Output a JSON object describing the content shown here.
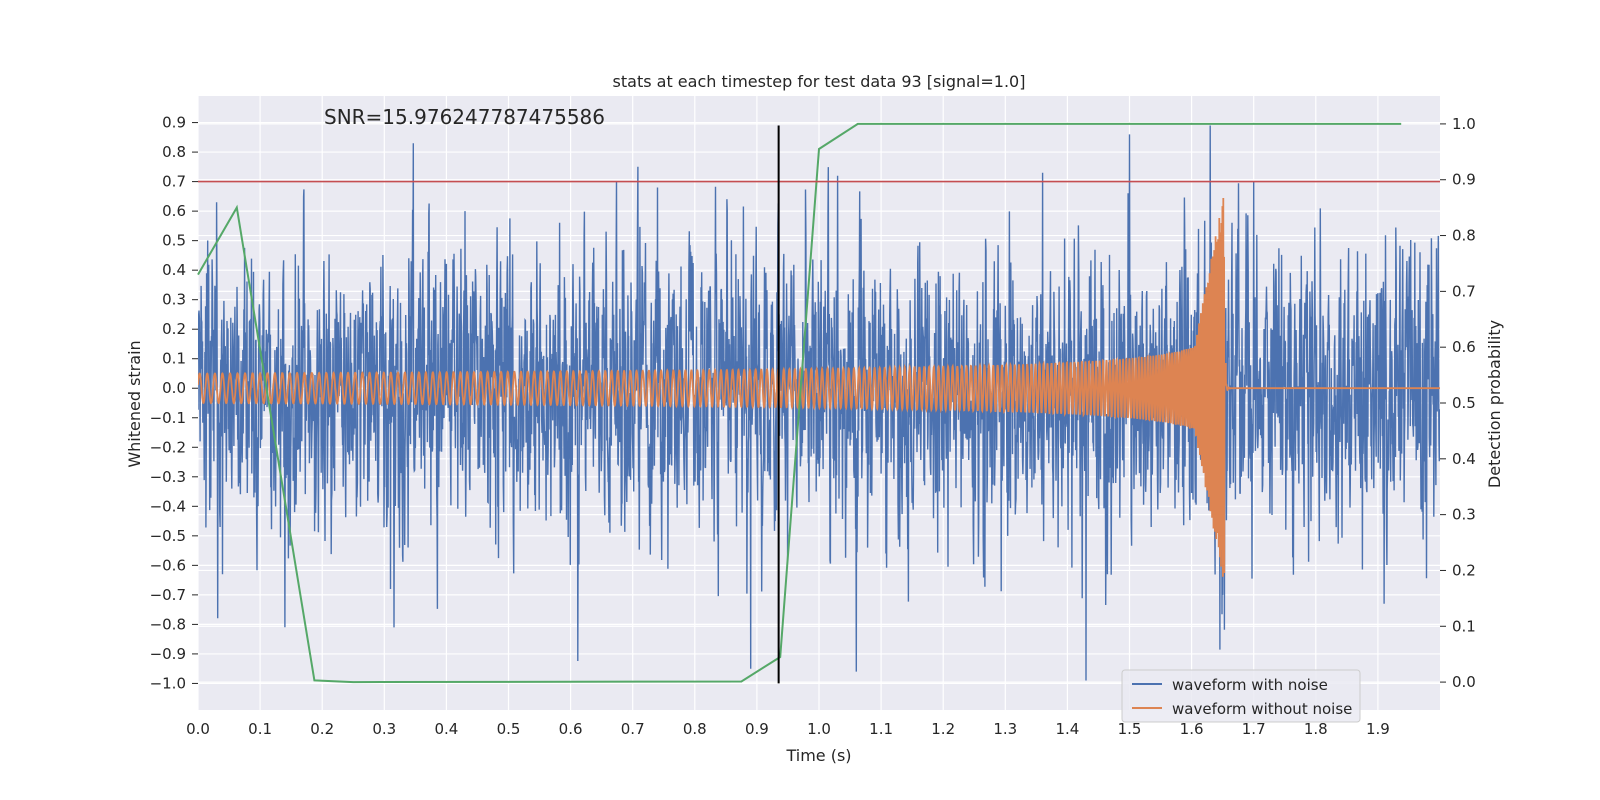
{
  "chart_data": {
    "type": "line",
    "title": "stats at each timestep for test data 93 [signal=1.0]",
    "annotation": "SNR=15.976247787475586",
    "xlabel": "Time (s)",
    "ylabel": "Whitened strain",
    "y2label": "Detection probability",
    "xlim": [
      0.0,
      2.0
    ],
    "ylim": [
      -1.09,
      0.99
    ],
    "y2lim": [
      -0.05,
      1.05
    ],
    "xticks": [
      "0.0",
      "0.1",
      "0.2",
      "0.3",
      "0.4",
      "0.5",
      "0.6",
      "0.7",
      "0.8",
      "0.9",
      "1.0",
      "1.1",
      "1.2",
      "1.3",
      "1.4",
      "1.5",
      "1.6",
      "1.7",
      "1.8",
      "1.9"
    ],
    "yticks": [
      "0.9",
      "0.8",
      "0.7",
      "0.6",
      "0.5",
      "0.4",
      "0.3",
      "0.2",
      "0.1",
      "0.0",
      "−0.1",
      "−0.2",
      "−0.3",
      "−0.4",
      "−0.5",
      "−0.6",
      "−0.7",
      "−0.8",
      "−0.9",
      "−1.0"
    ],
    "y2ticks": [
      "1.0",
      "0.9",
      "0.8",
      "0.7",
      "0.6",
      "0.5",
      "0.4",
      "0.3",
      "0.2",
      "0.1",
      "0.0"
    ],
    "grid": true,
    "legend_position": "lower-right",
    "threshold": {
      "y": 0.7,
      "color": "#c44e52"
    },
    "marker_line": {
      "x": 0.935,
      "y_range": [
        -1.0,
        0.89
      ],
      "color": "#000000"
    },
    "series": [
      {
        "name": "waveform with noise",
        "axis": "left",
        "color": "#4c72b0",
        "description": "dense noisy strain, roughly uniform amplitude about ±0.6 with spikes to 0.89 / −0.99",
        "extremes": [
          [
            0.14,
            -0.81
          ],
          [
            0.03,
            0.63
          ],
          [
            0.31,
            -0.68
          ],
          [
            0.43,
            0.6
          ],
          [
            0.74,
            0.68
          ],
          [
            0.89,
            -0.95
          ],
          [
            1.03,
            0.72
          ],
          [
            1.06,
            -0.96
          ],
          [
            1.36,
            0.73
          ],
          [
            1.43,
            -0.99
          ],
          [
            1.5,
            0.86
          ],
          [
            1.63,
            0.89
          ],
          [
            1.65,
            -0.7
          ],
          [
            1.7,
            0.7
          ],
          [
            1.91,
            -0.73
          ],
          [
            1.95,
            0.36
          ]
        ]
      },
      {
        "name": "waveform without noise",
        "axis": "left",
        "color": "#dd8452",
        "description": "chirp: amplitude ~0.05 at t=0 rising to ~0.72 near t=1.655, flat at 0 afterwards",
        "chirp": {
          "merger_time": 1.655,
          "start_amplitude": 0.05,
          "peak_amplitude": 0.72,
          "start_frequency_hz": 22,
          "peak_frequency_hz": 250
        }
      },
      {
        "name": "",
        "axis": "right",
        "color": "#55a868",
        "x": [
          0.0,
          0.0625,
          0.1875,
          0.25,
          0.875,
          0.9375,
          1.0,
          1.0625,
          1.125,
          1.9375
        ],
        "values": [
          0.73,
          0.85,
          0.003,
          0.0,
          0.001,
          0.045,
          0.955,
          1.0,
          1.0,
          1.0
        ]
      }
    ]
  }
}
